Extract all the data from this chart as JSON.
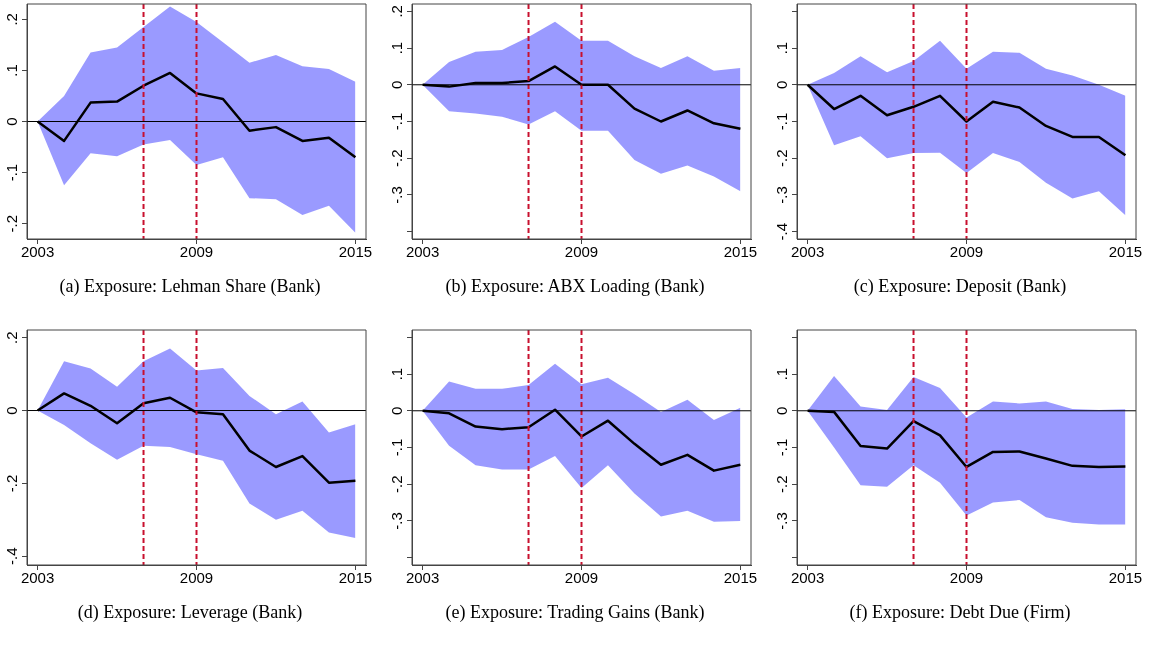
{
  "chart_data": [
    {
      "type": "line",
      "title": "(a)  Exposure: Lehman Share (Bank)",
      "x": [
        2003,
        2004,
        2005,
        2006,
        2007,
        2008,
        2009,
        2010,
        2011,
        2012,
        2013,
        2014,
        2015
      ],
      "xlim": [
        2002.6,
        2015.4
      ],
      "xticks": [
        2003,
        2009,
        2015
      ],
      "ylim": [
        -0.23,
        0.23
      ],
      "yticks": [
        {
          "value": -0.2,
          "label": "-.2"
        },
        {
          "value": -0.1,
          "label": "-.1"
        },
        {
          "value": 0,
          "label": "0"
        },
        {
          "value": 0.1,
          "label": ".1"
        },
        {
          "value": 0.2,
          "label": ".2"
        }
      ],
      "grid": false,
      "legend": false,
      "marker": "none",
      "line_style": "solid",
      "series": [
        {
          "color": "#000000",
          "values": [
            0,
            -0.038,
            0.037,
            0.039,
            0.07,
            0.095,
            0.055,
            0.044,
            -0.018,
            -0.011,
            -0.038,
            -0.032,
            -0.07
          ],
          "upper": [
            0,
            0.05,
            0.135,
            0.145,
            0.185,
            0.225,
            0.195,
            0.155,
            0.115,
            0.13,
            0.108,
            0.103,
            0.078
          ],
          "lower": [
            0,
            -0.125,
            -0.062,
            -0.068,
            -0.045,
            -0.036,
            -0.085,
            -0.07,
            -0.15,
            -0.152,
            -0.183,
            -0.165,
            -0.218
          ]
        }
      ],
      "ref_lines": [
        {
          "axis": "x",
          "value": 2007,
          "color": "#c8102e",
          "line_style": "dashed"
        },
        {
          "axis": "x",
          "value": 2009,
          "color": "#c8102e",
          "line_style": "dashed"
        },
        {
          "axis": "y",
          "value": 0,
          "color": "#000000",
          "line_style": "solid"
        }
      ]
    },
    {
      "type": "line",
      "title": "(b)  Exposure: ABX Loading (Bank)",
      "x": [
        2003,
        2004,
        2005,
        2006,
        2007,
        2008,
        2009,
        2010,
        2011,
        2012,
        2013,
        2014,
        2015
      ],
      "xlim": [
        2002.6,
        2015.4
      ],
      "xticks": [
        2003,
        2009,
        2015
      ],
      "ylim": [
        -0.42,
        0.22
      ],
      "yticks": [
        {
          "value": -0.4,
          "label": null
        },
        {
          "value": -0.3,
          "label": "-.3"
        },
        {
          "value": -0.2,
          "label": "-.2"
        },
        {
          "value": -0.1,
          "label": "-.1"
        },
        {
          "value": 0,
          "label": "0"
        },
        {
          "value": 0.1,
          "label": ".1"
        },
        {
          "value": 0.2,
          "label": ".2"
        }
      ],
      "grid": false,
      "legend": false,
      "marker": "none",
      "line_style": "solid",
      "series": [
        {
          "color": "#000000",
          "values": [
            0,
            -0.005,
            0.005,
            0.005,
            0.01,
            0.05,
            0,
            0,
            -0.065,
            -0.1,
            -0.07,
            -0.105,
            -0.12
          ],
          "upper": [
            0,
            0.062,
            0.09,
            0.095,
            0.13,
            0.172,
            0.12,
            0.12,
            0.078,
            0.046,
            0.078,
            0.038,
            0.046
          ],
          "lower": [
            0,
            -0.072,
            -0.078,
            -0.087,
            -0.108,
            -0.072,
            -0.125,
            -0.125,
            -0.205,
            -0.242,
            -0.22,
            -0.25,
            -0.29
          ]
        }
      ],
      "ref_lines": [
        {
          "axis": "x",
          "value": 2007,
          "color": "#c8102e",
          "line_style": "dashed"
        },
        {
          "axis": "x",
          "value": 2009,
          "color": "#c8102e",
          "line_style": "dashed"
        },
        {
          "axis": "y",
          "value": 0,
          "color": "#000000",
          "line_style": "solid"
        }
      ]
    },
    {
      "type": "line",
      "title": "(c)  Exposure: Deposit (Bank)",
      "x": [
        2003,
        2004,
        2005,
        2006,
        2007,
        2008,
        2009,
        2010,
        2011,
        2012,
        2013,
        2014,
        2015
      ],
      "xlim": [
        2002.6,
        2015.4
      ],
      "xticks": [
        2003,
        2009,
        2015
      ],
      "ylim": [
        -0.42,
        0.22
      ],
      "yticks": [
        {
          "value": -0.4,
          "label": "-.4"
        },
        {
          "value": -0.3,
          "label": "-.3"
        },
        {
          "value": -0.2,
          "label": "-.2"
        },
        {
          "value": -0.1,
          "label": "-.1"
        },
        {
          "value": 0,
          "label": "0"
        },
        {
          "value": 0.1,
          "label": ".1"
        },
        {
          "value": 0.2,
          "label": null
        }
      ],
      "grid": false,
      "legend": false,
      "marker": "none",
      "line_style": "solid",
      "series": [
        {
          "color": "#000000",
          "values": [
            0,
            -0.066,
            -0.03,
            -0.083,
            -0.06,
            -0.03,
            -0.1,
            -0.046,
            -0.062,
            -0.112,
            -0.142,
            -0.142,
            -0.192
          ],
          "upper": [
            0,
            0.032,
            0.078,
            0.034,
            0.065,
            0.12,
            0.044,
            0.09,
            0.087,
            0.044,
            0.025,
            0,
            -0.03
          ],
          "lower": [
            0,
            -0.165,
            -0.14,
            -0.2,
            -0.186,
            -0.185,
            -0.24,
            -0.186,
            -0.21,
            -0.267,
            -0.31,
            -0.29,
            -0.355
          ]
        }
      ],
      "ref_lines": [
        {
          "axis": "x",
          "value": 2007,
          "color": "#c8102e",
          "line_style": "dashed"
        },
        {
          "axis": "x",
          "value": 2009,
          "color": "#c8102e",
          "line_style": "dashed"
        },
        {
          "axis": "y",
          "value": 0,
          "color": "#000000",
          "line_style": "solid"
        }
      ]
    },
    {
      "type": "line",
      "title": "(d)  Exposure: Leverage (Bank)",
      "x": [
        2003,
        2004,
        2005,
        2006,
        2007,
        2008,
        2009,
        2010,
        2011,
        2012,
        2013,
        2014,
        2015
      ],
      "xlim": [
        2002.6,
        2015.4
      ],
      "xticks": [
        2003,
        2009,
        2015
      ],
      "ylim": [
        -0.424,
        0.221
      ],
      "yticks": [
        {
          "value": -0.4,
          "label": "-.4"
        },
        {
          "value": -0.2,
          "label": "-.2"
        },
        {
          "value": 0,
          "label": "0"
        },
        {
          "value": 0.2,
          "label": ".2"
        }
      ],
      "grid": false,
      "legend": false,
      "marker": "none",
      "line_style": "solid",
      "series": [
        {
          "color": "#000000",
          "values": [
            0,
            0.047,
            0.013,
            -0.035,
            0.02,
            0.035,
            -0.005,
            -0.01,
            -0.11,
            -0.155,
            -0.125,
            -0.198,
            -0.193
          ],
          "upper": [
            0,
            0.135,
            0.115,
            0.065,
            0.135,
            0.17,
            0.11,
            0.117,
            0.04,
            -0.01,
            0.025,
            -0.06,
            -0.038
          ],
          "lower": [
            0,
            -0.04,
            -0.09,
            -0.135,
            -0.097,
            -0.1,
            -0.12,
            -0.138,
            -0.255,
            -0.3,
            -0.275,
            -0.335,
            -0.35
          ]
        }
      ],
      "ref_lines": [
        {
          "axis": "x",
          "value": 2007,
          "color": "#c8102e",
          "line_style": "dashed"
        },
        {
          "axis": "x",
          "value": 2009,
          "color": "#c8102e",
          "line_style": "dashed"
        },
        {
          "axis": "y",
          "value": 0,
          "color": "#000000",
          "line_style": "solid"
        }
      ]
    },
    {
      "type": "line",
      "title": "(e)  Exposure: Trading Gains (Bank)",
      "x": [
        2003,
        2004,
        2005,
        2006,
        2007,
        2008,
        2009,
        2010,
        2011,
        2012,
        2013,
        2014,
        2015
      ],
      "xlim": [
        2002.6,
        2015.4
      ],
      "xticks": [
        2003,
        2009,
        2015
      ],
      "ylim": [
        -0.42,
        0.22
      ],
      "yticks": [
        {
          "value": -0.4,
          "label": null
        },
        {
          "value": -0.3,
          "label": "-.3"
        },
        {
          "value": -0.2,
          "label": "-.2"
        },
        {
          "value": -0.1,
          "label": "-.1"
        },
        {
          "value": 0,
          "label": "0"
        },
        {
          "value": 0.1,
          "label": ".1"
        },
        {
          "value": 0.2,
          "label": null
        }
      ],
      "grid": false,
      "legend": false,
      "marker": "none",
      "line_style": "solid",
      "series": [
        {
          "color": "#000000",
          "values": [
            0,
            -0.007,
            -0.043,
            -0.05,
            -0.045,
            0.003,
            -0.07,
            -0.027,
            -0.09,
            -0.147,
            -0.12,
            -0.163,
            -0.147
          ],
          "upper": [
            0,
            0.08,
            0.06,
            0.06,
            0.07,
            0.128,
            0.072,
            0.09,
            0.045,
            -0.003,
            0.03,
            -0.025,
            0.008
          ],
          "lower": [
            0,
            -0.095,
            -0.148,
            -0.16,
            -0.16,
            -0.123,
            -0.21,
            -0.148,
            -0.225,
            -0.288,
            -0.272,
            -0.302,
            -0.3
          ]
        }
      ],
      "ref_lines": [
        {
          "axis": "x",
          "value": 2007,
          "color": "#c8102e",
          "line_style": "dashed"
        },
        {
          "axis": "x",
          "value": 2009,
          "color": "#c8102e",
          "line_style": "dashed"
        },
        {
          "axis": "y",
          "value": 0,
          "color": "#000000",
          "line_style": "solid"
        }
      ]
    },
    {
      "type": "line",
      "title": "(f)  Exposure: Debt Due (Firm)",
      "x": [
        2003,
        2004,
        2005,
        2006,
        2007,
        2008,
        2009,
        2010,
        2011,
        2012,
        2013,
        2014,
        2015
      ],
      "xlim": [
        2002.6,
        2015.4
      ],
      "xticks": [
        2003,
        2009,
        2015
      ],
      "ylim": [
        -0.42,
        0.22
      ],
      "yticks": [
        {
          "value": -0.4,
          "label": null
        },
        {
          "value": -0.3,
          "label": "-.3"
        },
        {
          "value": -0.2,
          "label": "-.2"
        },
        {
          "value": -0.1,
          "label": "-.1"
        },
        {
          "value": 0,
          "label": "0"
        },
        {
          "value": 0.1,
          "label": ".1"
        },
        {
          "value": 0.2,
          "label": null
        }
      ],
      "grid": false,
      "legend": false,
      "marker": "none",
      "line_style": "solid",
      "series": [
        {
          "color": "#000000",
          "values": [
            0,
            -0.003,
            -0.096,
            -0.103,
            -0.028,
            -0.067,
            -0.153,
            -0.112,
            -0.111,
            -0.13,
            -0.15,
            -0.153,
            -0.152
          ],
          "upper": [
            0,
            0.095,
            0.012,
            0.002,
            0.092,
            0.062,
            -0.018,
            0.025,
            0.02,
            0.025,
            0.005,
            0.002,
            0.004
          ],
          "lower": [
            0,
            -0.1,
            -0.203,
            -0.207,
            -0.148,
            -0.196,
            -0.285,
            -0.25,
            -0.243,
            -0.29,
            -0.305,
            -0.31,
            -0.31
          ]
        }
      ],
      "ref_lines": [
        {
          "axis": "x",
          "value": 2007,
          "color": "#c8102e",
          "line_style": "dashed"
        },
        {
          "axis": "x",
          "value": 2009,
          "color": "#c8102e",
          "line_style": "dashed"
        },
        {
          "axis": "y",
          "value": 0,
          "color": "#000000",
          "line_style": "solid"
        }
      ]
    }
  ]
}
